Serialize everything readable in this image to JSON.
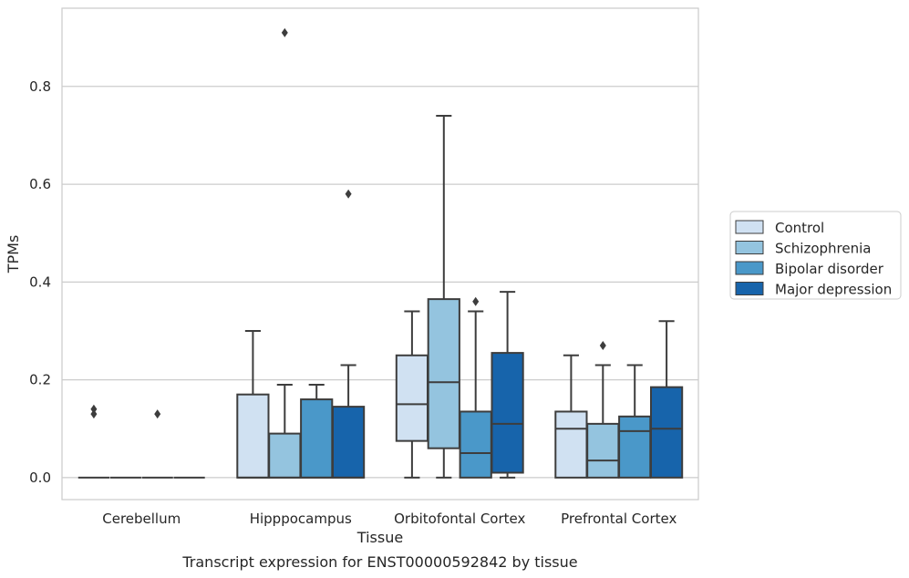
{
  "chart_data": {
    "type": "box",
    "title": "",
    "caption": "Transcript expression for ENST00000592842 by tissue",
    "xlabel": "Tissue",
    "ylabel": "TPMs",
    "ylim": [
      -0.045,
      0.96
    ],
    "yticks": [
      "0.0",
      "0.2",
      "0.4",
      "0.6",
      "0.8"
    ],
    "ytick_values": [
      0.0,
      0.2,
      0.4,
      0.6,
      0.8
    ],
    "grid": "horizontal",
    "legend_position": "outside-right",
    "categories": [
      "Cerebellum",
      "Hipppocampus",
      "Orbitofontal Cortex",
      "Prefrontal Cortex"
    ],
    "series": [
      {
        "name": "Control",
        "color": "#d0e1f2",
        "boxes": [
          {
            "q1": 0.0,
            "median": 0.0,
            "q3": 0.0,
            "whislo": 0.0,
            "whishi": 0.0,
            "fliers": [
              0.14,
              0.13
            ]
          },
          {
            "q1": 0.0,
            "median": 0.0,
            "q3": 0.17,
            "whislo": 0.0,
            "whishi": 0.3,
            "fliers": []
          },
          {
            "q1": 0.075,
            "median": 0.15,
            "q3": 0.25,
            "whislo": 0.0,
            "whishi": 0.34,
            "fliers": []
          },
          {
            "q1": 0.0,
            "median": 0.1,
            "q3": 0.135,
            "whislo": 0.0,
            "whishi": 0.25,
            "fliers": []
          }
        ]
      },
      {
        "name": "Schizophrenia",
        "color": "#94c4df",
        "boxes": [
          {
            "q1": 0.0,
            "median": 0.0,
            "q3": 0.0,
            "whislo": 0.0,
            "whishi": 0.0,
            "fliers": []
          },
          {
            "q1": 0.0,
            "median": 0.0,
            "q3": 0.09,
            "whislo": 0.0,
            "whishi": 0.19,
            "fliers": [
              0.91
            ]
          },
          {
            "q1": 0.06,
            "median": 0.195,
            "q3": 0.365,
            "whislo": 0.0,
            "whishi": 0.74,
            "fliers": []
          },
          {
            "q1": 0.0,
            "median": 0.035,
            "q3": 0.11,
            "whislo": 0.0,
            "whishi": 0.23,
            "fliers": [
              0.27
            ]
          }
        ]
      },
      {
        "name": "Bipolar disorder",
        "color": "#4a98c9",
        "boxes": [
          {
            "q1": 0.0,
            "median": 0.0,
            "q3": 0.0,
            "whislo": 0.0,
            "whishi": 0.0,
            "fliers": [
              0.13
            ]
          },
          {
            "q1": 0.0,
            "median": 0.0,
            "q3": 0.16,
            "whislo": 0.0,
            "whishi": 0.19,
            "fliers": []
          },
          {
            "q1": 0.0,
            "median": 0.05,
            "q3": 0.135,
            "whislo": 0.0,
            "whishi": 0.34,
            "fliers": [
              0.36
            ]
          },
          {
            "q1": 0.0,
            "median": 0.095,
            "q3": 0.125,
            "whislo": 0.0,
            "whishi": 0.23,
            "fliers": []
          }
        ]
      },
      {
        "name": "Major depression",
        "color": "#1764ab",
        "boxes": [
          {
            "q1": 0.0,
            "median": 0.0,
            "q3": 0.0,
            "whislo": 0.0,
            "whishi": 0.0,
            "fliers": []
          },
          {
            "q1": 0.0,
            "median": 0.0,
            "q3": 0.145,
            "whislo": 0.0,
            "whishi": 0.23,
            "fliers": [
              0.58
            ]
          },
          {
            "q1": 0.01,
            "median": 0.11,
            "q3": 0.255,
            "whislo": 0.0,
            "whishi": 0.38,
            "fliers": []
          },
          {
            "q1": 0.0,
            "median": 0.1,
            "q3": 0.185,
            "whislo": 0.0,
            "whishi": 0.32,
            "fliers": []
          }
        ]
      }
    ]
  }
}
